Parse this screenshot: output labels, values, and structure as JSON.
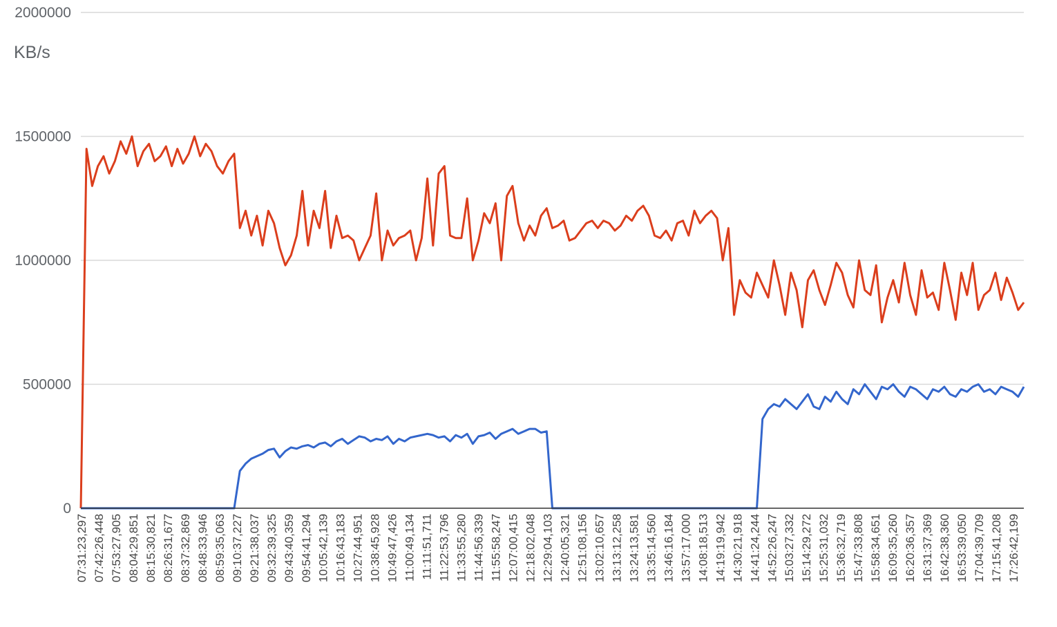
{
  "chart_data": {
    "type": "line",
    "ylabel": "KB/s",
    "title": "",
    "xlabel": "",
    "ylim": [
      0,
      2000000
    ],
    "yticks": [
      "0",
      "500000",
      "1000000",
      "1500000",
      "2000000"
    ],
    "yticks_values": [
      0,
      500000,
      1000000,
      1500000,
      2000000
    ],
    "grid": true,
    "x_tick_labels": [
      "07:31:23,297",
      "07:42:26,448",
      "07:53:27,905",
      "08:04:29,851",
      "08:15:30,821",
      "08:26:31,677",
      "08:37:32,869",
      "08:48:33,946",
      "08:59:35,063",
      "09:10:37,227",
      "09:21:38,037",
      "09:32:39,325",
      "09:43:40,359",
      "09:54:41,294",
      "10:05:42,139",
      "10:16:43,183",
      "10:27:44,951",
      "10:38:45,928",
      "10:49:47,426",
      "11:00:49,134",
      "11:11:51,711",
      "11:22:53,796",
      "11:33:55,280",
      "11:44:56,339",
      "11:55:58,247",
      "12:07:00,415",
      "12:18:02,048",
      "12:29:04,103",
      "12:40:05,321",
      "12:51:08,156",
      "13:02:10,657",
      "13:13:12,258",
      "13:24:13,581",
      "13:35:14,560",
      "13:46:16,184",
      "13:57:17,000",
      "14:08:18,513",
      "14:19:19,942",
      "14:30:21,918",
      "14:41:24,244",
      "14:52:26,247",
      "15:03:27,332",
      "15:14:29,272",
      "15:25:31,032",
      "15:36:32,719",
      "15:47:33,808",
      "15:58:34,651",
      "16:09:35,260",
      "16:20:36,357",
      "16:31:37,369",
      "16:42:38,360",
      "16:53:39,050",
      "17:04:39,709",
      "17:15:41,208",
      "17:26:42,199"
    ],
    "series": [
      {
        "color": "#db3e1c",
        "values": [
          0,
          1450000,
          1300000,
          1380000,
          1420000,
          1350000,
          1400000,
          1480000,
          1430000,
          1500000,
          1380000,
          1440000,
          1470000,
          1400000,
          1420000,
          1460000,
          1380000,
          1450000,
          1390000,
          1430000,
          1500000,
          1420000,
          1470000,
          1440000,
          1380000,
          1350000,
          1400000,
          1430000,
          1130000,
          1200000,
          1100000,
          1180000,
          1060000,
          1200000,
          1150000,
          1050000,
          980000,
          1020000,
          1100000,
          1280000,
          1060000,
          1200000,
          1130000,
          1280000,
          1050000,
          1180000,
          1090000,
          1100000,
          1080000,
          1000000,
          1050000,
          1100000,
          1270000,
          1000000,
          1120000,
          1060000,
          1090000,
          1100000,
          1120000,
          1000000,
          1090000,
          1330000,
          1060000,
          1350000,
          1380000,
          1100000,
          1090000,
          1090000,
          1250000,
          1000000,
          1080000,
          1190000,
          1150000,
          1230000,
          1000000,
          1260000,
          1300000,
          1150000,
          1080000,
          1140000,
          1100000,
          1180000,
          1210000,
          1130000,
          1140000,
          1160000,
          1080000,
          1090000,
          1120000,
          1150000,
          1160000,
          1130000,
          1160000,
          1150000,
          1120000,
          1140000,
          1180000,
          1160000,
          1200000,
          1220000,
          1180000,
          1100000,
          1090000,
          1120000,
          1080000,
          1150000,
          1160000,
          1100000,
          1200000,
          1150000,
          1180000,
          1200000,
          1170000,
          1000000,
          1130000,
          780000,
          920000,
          870000,
          850000,
          950000,
          900000,
          850000,
          1000000,
          900000,
          780000,
          950000,
          880000,
          730000,
          920000,
          960000,
          880000,
          820000,
          900000,
          990000,
          950000,
          860000,
          810000,
          1000000,
          880000,
          860000,
          980000,
          750000,
          850000,
          920000,
          830000,
          990000,
          860000,
          780000,
          960000,
          850000,
          870000,
          800000,
          990000,
          880000,
          760000,
          950000,
          860000,
          990000,
          800000,
          860000,
          880000,
          950000,
          840000,
          930000,
          870000,
          800000,
          830000
        ]
      },
      {
        "color": "#3366cc",
        "values": [
          0,
          0,
          0,
          0,
          0,
          0,
          0,
          0,
          0,
          0,
          0,
          0,
          0,
          0,
          0,
          0,
          0,
          0,
          0,
          0,
          0,
          0,
          0,
          0,
          0,
          0,
          0,
          0,
          150000,
          180000,
          200000,
          210000,
          220000,
          235000,
          240000,
          205000,
          230000,
          245000,
          240000,
          250000,
          255000,
          245000,
          260000,
          265000,
          250000,
          270000,
          280000,
          260000,
          275000,
          290000,
          285000,
          270000,
          280000,
          275000,
          290000,
          260000,
          280000,
          270000,
          285000,
          290000,
          295000,
          300000,
          295000,
          285000,
          290000,
          270000,
          295000,
          285000,
          300000,
          260000,
          290000,
          295000,
          305000,
          280000,
          300000,
          310000,
          320000,
          300000,
          310000,
          320000,
          320000,
          305000,
          310000,
          0,
          0,
          0,
          0,
          0,
          0,
          0,
          0,
          0,
          0,
          0,
          0,
          0,
          0,
          0,
          0,
          0,
          0,
          0,
          0,
          0,
          0,
          0,
          0,
          0,
          0,
          0,
          0,
          0,
          0,
          0,
          0,
          0,
          0,
          0,
          0,
          0,
          360000,
          400000,
          420000,
          410000,
          440000,
          420000,
          400000,
          430000,
          460000,
          410000,
          400000,
          450000,
          430000,
          470000,
          440000,
          420000,
          480000,
          460000,
          500000,
          470000,
          440000,
          490000,
          480000,
          500000,
          470000,
          450000,
          490000,
          480000,
          460000,
          440000,
          480000,
          470000,
          490000,
          460000,
          450000,
          480000,
          470000,
          490000,
          500000,
          470000,
          480000,
          460000,
          490000,
          480000,
          470000,
          450000,
          490000
        ]
      }
    ]
  }
}
